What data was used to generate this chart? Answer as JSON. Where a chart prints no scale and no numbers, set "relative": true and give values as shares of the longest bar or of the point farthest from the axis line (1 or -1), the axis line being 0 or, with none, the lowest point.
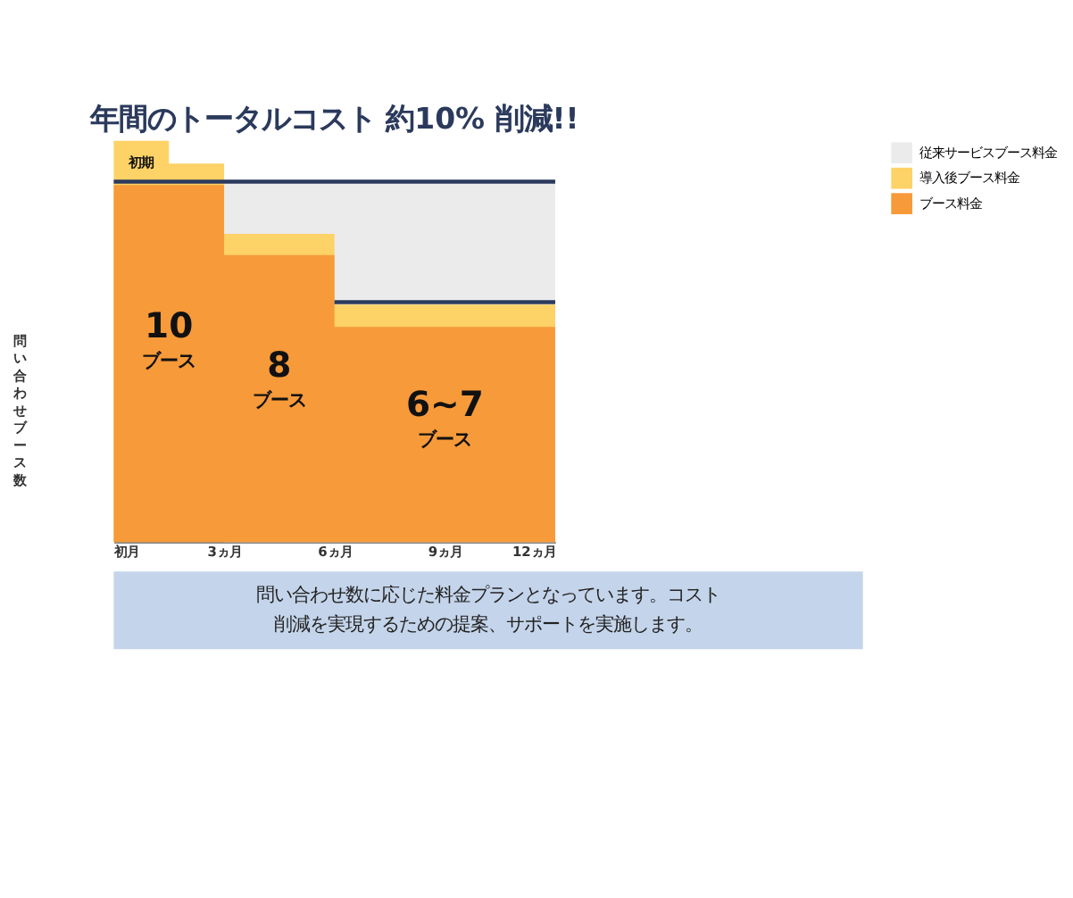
{
  "chart_data": {
    "type": "area",
    "title": "年間のトータルコスト 約10% 削減!!",
    "ylabel": "問い合わせブース数",
    "relative": true,
    "x": [
      0,
      1.5,
      3,
      6,
      12
    ],
    "series": [
      {
        "name": "従来サービスブース料金",
        "color": "#ebebeb",
        "values": [
          null,
          null,
          0.898,
          0.898,
          0.898
        ]
      },
      {
        "name": "導入後ブース料金",
        "color": "#fdd266",
        "values": [
          1.0,
          0.943,
          0.768,
          0.592,
          0.592
        ]
      },
      {
        "name": "ブース料金",
        "color": "#f79a3a",
        "values": [
          0.89,
          0.89,
          0.715,
          0.536,
          0.536
        ]
      },
      {
        "type": "line",
        "color": "#2b3a5c",
        "x": [
          0,
          12
        ],
        "values": [
          0.898,
          0.898
        ]
      },
      {
        "type": "line",
        "color": "#2b3a5c",
        "x": [
          6,
          12
        ],
        "values": [
          0.598,
          0.598
        ]
      }
    ],
    "xlim": [
      0,
      12
    ],
    "xticks": [
      {
        "value": 0,
        "label": "初月"
      },
      {
        "value": 3,
        "label": "3ヵ月"
      },
      {
        "value": 6,
        "label": "6ヵ月"
      },
      {
        "value": 9,
        "label": "9ヵ月"
      },
      {
        "value": 12,
        "label": "12ヵ月"
      }
    ],
    "annotations": [
      "初期",
      "10",
      "ブース",
      "8",
      "ブース",
      "6~7",
      "ブース",
      "問い合わせ数に応じた料金プランとなっています。コスト削減を実現するための提案、サポートを実施します。"
    ],
    "legend": "right",
    "grid": false
  }
}
